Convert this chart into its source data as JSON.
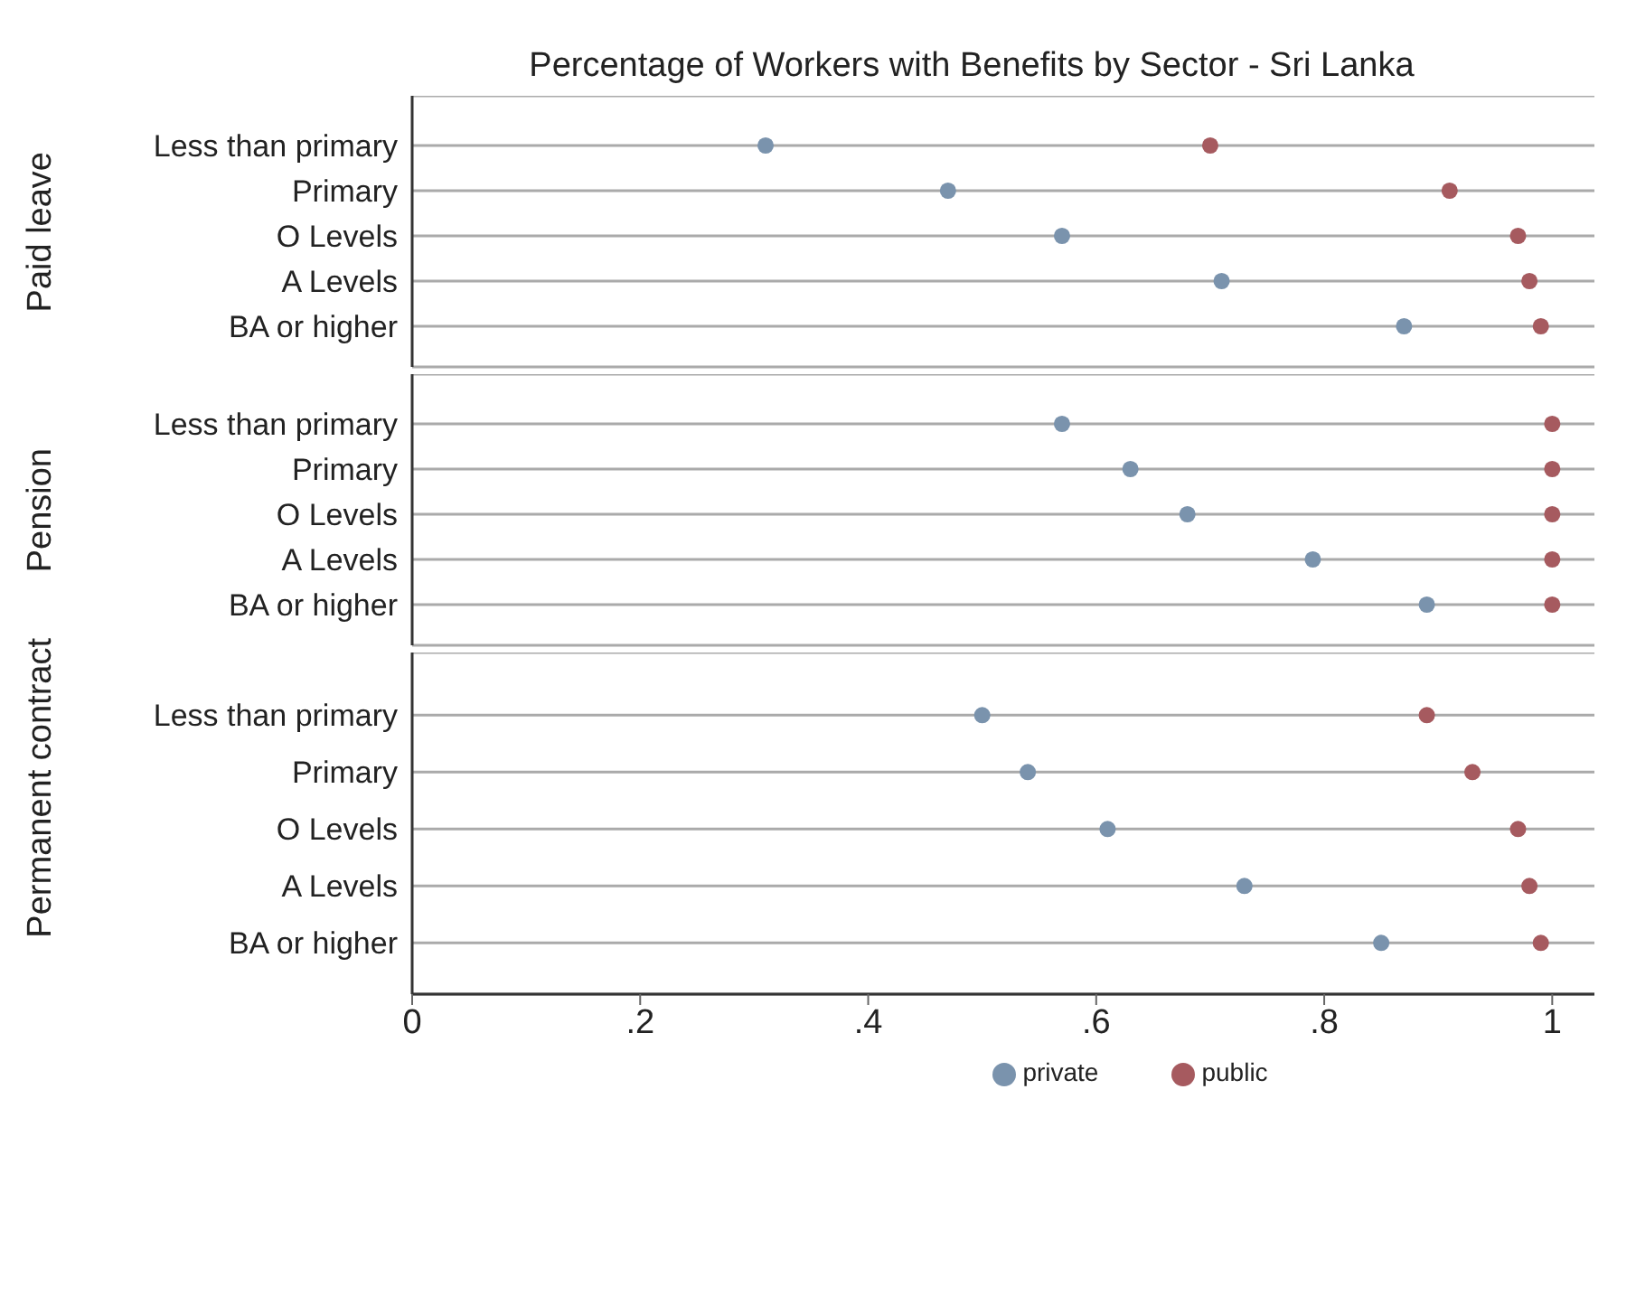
{
  "chart_data": [
    {
      "type": "scatter",
      "orientation": "horizontal",
      "title": "Percentage of Workers with Benefits by Sector - Sri Lanka",
      "ylabel": "Paid leave",
      "categories": [
        "Less than primary",
        "Primary",
        "O Levels",
        "A Levels",
        "BA or higher"
      ],
      "xlim": [
        0,
        1.037
      ],
      "grid": "y",
      "marker": "circle",
      "tick_labels": "y",
      "series": [
        {
          "color": "#7a93ad",
          "values": [
            0.31,
            0.47,
            0.57,
            0.71,
            0.87
          ]
        },
        {
          "color": "#a65a5f",
          "values": [
            0.7,
            0.91,
            0.97,
            0.98,
            0.99
          ]
        }
      ]
    },
    {
      "type": "scatter",
      "orientation": "horizontal",
      "ylabel": "Pension",
      "categories": [
        "Less than primary",
        "Primary",
        "O Levels",
        "A Levels",
        "BA or higher"
      ],
      "xlim": [
        0,
        1.037
      ],
      "grid": "y",
      "marker": "circle",
      "tick_labels": "y",
      "series": [
        {
          "color": "#7a93ad",
          "values": [
            0.57,
            0.63,
            0.68,
            0.79,
            0.89
          ]
        },
        {
          "color": "#a65a5f",
          "values": [
            1.0,
            1.0,
            1.0,
            1.0,
            1.0
          ]
        }
      ]
    },
    {
      "type": "scatter",
      "orientation": "horizontal",
      "ylabel": "Permanent contract",
      "categories": [
        "Less than primary",
        "Primary",
        "O Levels",
        "A Levels",
        "BA or higher"
      ],
      "xlim": [
        0,
        1.037
      ],
      "xticks": [
        0,
        {
          "value": 0.2,
          "label": ".2"
        },
        {
          "value": 0.4,
          "label": ".4"
        },
        {
          "value": 0.6,
          "label": ".6"
        },
        {
          "value": 0.8,
          "label": ".8"
        },
        1
      ],
      "grid": "y",
      "marker": "circle",
      "legend": "bottom",
      "series": [
        {
          "name": "private",
          "color": "#7a93ad",
          "values": [
            0.5,
            0.54,
            0.61,
            0.73,
            0.85
          ]
        },
        {
          "name": "public",
          "color": "#a65a5f",
          "values": [
            0.89,
            0.93,
            0.97,
            0.98,
            0.99
          ]
        }
      ]
    }
  ]
}
